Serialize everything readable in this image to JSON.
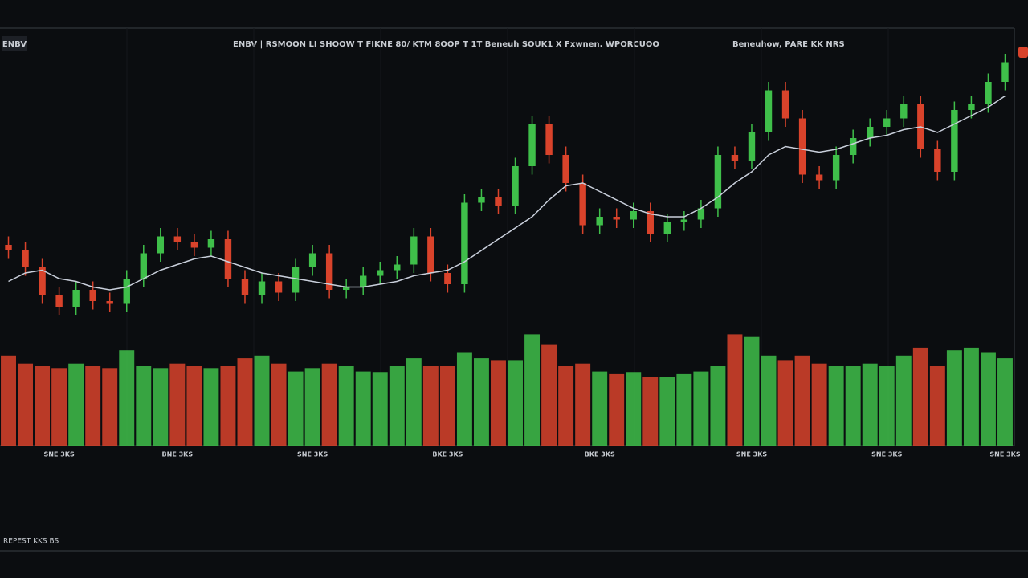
{
  "chart_data": {
    "type": "candlestick",
    "symbol": "ENBV",
    "title": "ENBV | RSMOON LI SHOOW T FIKNE 80/ KTM 8OOP T 1T  Beneuh SOUK1 X Fxwnen. WPORCUOO",
    "subtitle": "Beneuhow, PARE KK NRS",
    "footer": "REPEST KKS BS",
    "categories": [
      null,
      null,
      null,
      "SNE 3KS",
      null,
      null,
      null,
      null,
      null,
      null,
      "BNE 3KS",
      null,
      null,
      null,
      null,
      null,
      null,
      null,
      "SNE 3KS",
      null,
      null,
      null,
      null,
      null,
      null,
      null,
      "BKE 3KS",
      null,
      null,
      null,
      null,
      null,
      null,
      null,
      null,
      "BKE 3KS",
      null,
      null,
      null,
      null,
      null,
      null,
      null,
      null,
      "SNE 3KS",
      null,
      null,
      null,
      null,
      null,
      null,
      null,
      "SNE 3KS",
      null,
      null,
      null,
      null,
      null,
      null,
      "SNE 3KS"
    ],
    "open": [
      30,
      28,
      22,
      12,
      8,
      14,
      10,
      9,
      18,
      27,
      33,
      31,
      29,
      32,
      18,
      12,
      17,
      13,
      22,
      27,
      14,
      15,
      19,
      21,
      23,
      33,
      20,
      16,
      45,
      47,
      44,
      58,
      73,
      62,
      52,
      37,
      40,
      39,
      42,
      34,
      38,
      39,
      43,
      62,
      60,
      70,
      85,
      75,
      55,
      53,
      62,
      68,
      72,
      75,
      80,
      64,
      56,
      78,
      80,
      88
    ],
    "high": [
      33,
      31,
      25,
      15,
      17,
      17,
      13,
      21,
      30,
      36,
      36,
      34,
      35,
      35,
      21,
      20,
      20,
      25,
      30,
      30,
      18,
      22,
      24,
      26,
      36,
      36,
      23,
      48,
      50,
      50,
      61,
      76,
      76,
      65,
      55,
      43,
      43,
      45,
      45,
      41,
      42,
      46,
      65,
      65,
      73,
      88,
      88,
      78,
      58,
      65,
      71,
      75,
      78,
      83,
      83,
      67,
      81,
      83,
      91,
      98
    ],
    "low": [
      25,
      19,
      9,
      5,
      5,
      7,
      6,
      6,
      15,
      24,
      28,
      26,
      26,
      15,
      9,
      9,
      10,
      10,
      19,
      11,
      11,
      12,
      16,
      18,
      20,
      17,
      13,
      13,
      42,
      41,
      41,
      55,
      59,
      49,
      34,
      34,
      36,
      36,
      31,
      31,
      35,
      36,
      40,
      57,
      57,
      67,
      72,
      52,
      50,
      50,
      59,
      65,
      69,
      72,
      61,
      53,
      53,
      75,
      77,
      85
    ],
    "close": [
      28,
      22,
      12,
      8,
      14,
      10,
      9,
      18,
      27,
      33,
      31,
      29,
      32,
      18,
      12,
      17,
      13,
      22,
      27,
      14,
      15,
      19,
      21,
      23,
      33,
      20,
      16,
      45,
      47,
      44,
      58,
      73,
      62,
      52,
      37,
      40,
      39,
      42,
      34,
      38,
      39,
      43,
      62,
      60,
      70,
      85,
      75,
      55,
      53,
      62,
      68,
      72,
      75,
      80,
      64,
      56,
      78,
      80,
      88,
      95
    ],
    "ma": [
      17,
      20,
      21,
      18,
      17,
      15,
      14,
      15,
      18,
      21,
      23,
      25,
      26,
      24,
      22,
      20,
      19,
      18,
      17,
      16,
      15,
      15,
      16,
      17,
      19,
      20,
      21,
      24,
      28,
      32,
      36,
      40,
      46,
      51,
      52,
      49,
      46,
      43,
      41,
      40,
      40,
      43,
      47,
      52,
      56,
      62,
      65,
      64,
      63,
      64,
      66,
      68,
      69,
      71,
      72,
      70,
      73,
      76,
      79,
      83
    ],
    "volume": [
      68,
      62,
      60,
      58,
      62,
      60,
      58,
      72,
      60,
      58,
      62,
      60,
      58,
      60,
      66,
      68,
      62,
      56,
      58,
      62,
      60,
      56,
      55,
      60,
      66,
      60,
      60,
      70,
      66,
      64,
      64,
      84,
      76,
      60,
      62,
      56,
      54,
      55,
      52,
      52,
      54,
      56,
      60,
      84,
      82,
      68,
      64,
      68,
      62,
      60,
      60,
      62,
      60,
      68,
      74,
      60,
      72,
      74,
      70,
      66
    ],
    "up_color": "#3fbf4a",
    "down_color": "#d9432b",
    "ma_color": "#c9cfdb",
    "ylim": [
      0,
      100
    ],
    "volume_ylim": [
      0,
      100
    ]
  }
}
